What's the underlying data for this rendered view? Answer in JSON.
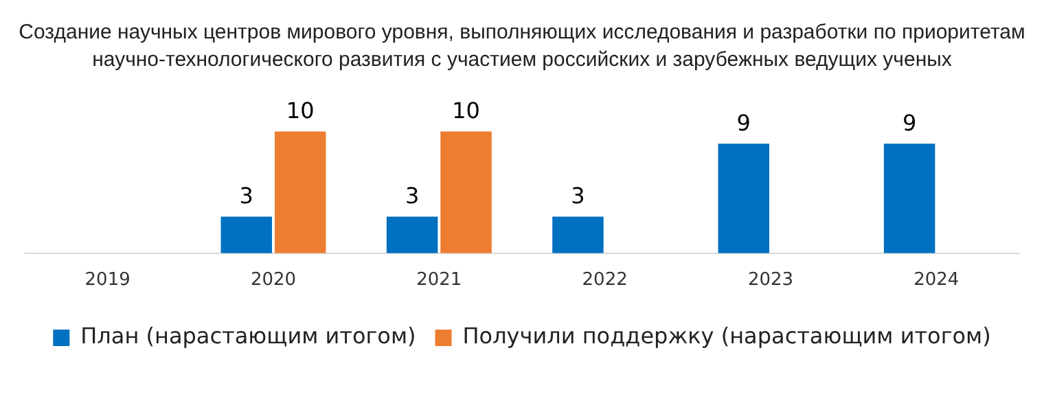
{
  "chart_data": {
    "type": "bar",
    "title": "Создание научных центров мирового уровня, выполняющих исследования и разработки по приоритетам научно-технологического развития с участием российских и зарубежных ведущих ученых",
    "categories": [
      "2019",
      "2020",
      "2021",
      "2022",
      "2023",
      "2024"
    ],
    "series": [
      {
        "name": "План (нарастающим итогом)",
        "color": "#0070c0",
        "values": [
          null,
          3,
          3,
          3,
          9,
          9
        ]
      },
      {
        "name": "Получили поддержку (нарастающим итогом)",
        "color": "#ed7d31",
        "values": [
          null,
          10,
          10,
          null,
          null,
          null
        ]
      }
    ],
    "data_labels": true,
    "legend": "bottom",
    "tick_labels": "x"
  }
}
